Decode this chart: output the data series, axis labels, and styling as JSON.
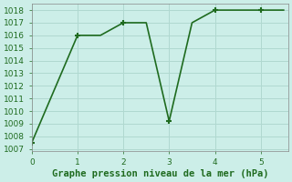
{
  "x": [
    0,
    1.0,
    1.5,
    2.0,
    2.5,
    3.0,
    3.5,
    4.0,
    5.0,
    5.5
  ],
  "y": [
    1007.5,
    1016.0,
    1016.0,
    1017.0,
    1017.0,
    1009.2,
    1017.0,
    1018.0,
    1018.0,
    1018.0
  ],
  "marker_x": [
    0,
    1.0,
    2.0,
    3.0,
    4.0,
    5.0
  ],
  "marker_y": [
    1007.5,
    1016.0,
    1017.0,
    1009.2,
    1018.0,
    1018.0
  ],
  "line_color": "#1f6b1f",
  "bg_color": "#cceee8",
  "grid_major_color": "#b0d8d0",
  "grid_minor_color": "#c8e8e0",
  "xlabel": "Graphe pression niveau de la mer (hPa)",
  "xlabel_color": "#1f6b1f",
  "ylabel_ticks": [
    1007,
    1008,
    1009,
    1010,
    1011,
    1012,
    1013,
    1014,
    1015,
    1016,
    1017,
    1018
  ],
  "xticks": [
    0,
    1,
    2,
    3,
    4,
    5
  ],
  "xlim": [
    0,
    5.6
  ],
  "ylim": [
    1006.8,
    1018.5
  ],
  "tick_color": "#1f6b1f",
  "tick_fontsize": 6.5,
  "xlabel_fontsize": 7.5
}
